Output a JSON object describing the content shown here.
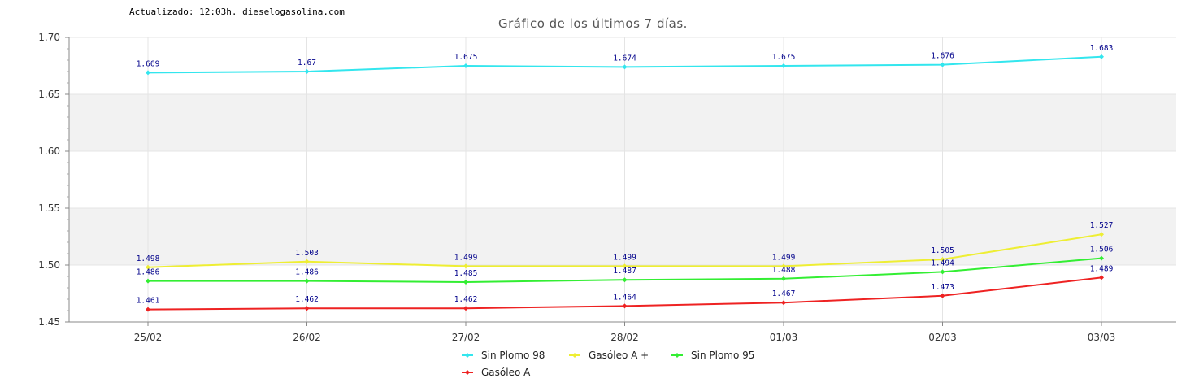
{
  "header": {
    "updated": "Actualizado: 12:03h. dieselogasolina.com",
    "title": "Gráfico de los últimos 7 días."
  },
  "chart_data": {
    "type": "line",
    "title": "Gráfico de los últimos 7 días.",
    "xlabel": "",
    "ylabel": "",
    "categories": [
      "25/02",
      "26/02",
      "27/02",
      "28/02",
      "01/03",
      "02/03",
      "03/03"
    ],
    "ylim": [
      1.45,
      1.7
    ],
    "yticks": [
      "1.45",
      "1.50",
      "1.55",
      "1.60",
      "1.65",
      "1.70"
    ],
    "grid": true,
    "legend_position": "bottom",
    "series": [
      {
        "name": "Sin Plomo 98",
        "color": "#33e6ee",
        "values": [
          1.669,
          1.67,
          1.675,
          1.674,
          1.675,
          1.676,
          1.683
        ],
        "labels": [
          "1.669",
          "1.67",
          "1.675",
          "1.674",
          "1.675",
          "1.676",
          "1.683"
        ]
      },
      {
        "name": "Gasóleo A +",
        "color": "#eeee33",
        "values": [
          1.498,
          1.503,
          1.499,
          1.499,
          1.499,
          1.505,
          1.527
        ],
        "labels": [
          "1.498",
          "1.503",
          "1.499",
          "1.499",
          "1.499",
          "1.505",
          "1.527"
        ]
      },
      {
        "name": "Sin Plomo 95",
        "color": "#33ee33",
        "values": [
          1.486,
          1.486,
          1.485,
          1.487,
          1.488,
          1.494,
          1.506
        ],
        "labels": [
          "1.486",
          "1.486",
          "1.485",
          "1.487",
          "1.488",
          "1.494",
          "1.506"
        ]
      },
      {
        "name": "Gasóleo A",
        "color": "#ee2222",
        "values": [
          1.461,
          1.462,
          1.462,
          1.464,
          1.467,
          1.473,
          1.489
        ],
        "labels": [
          "1.461",
          "1.462",
          "1.462",
          "1.464",
          "1.467",
          "1.473",
          "1.489"
        ]
      }
    ]
  }
}
